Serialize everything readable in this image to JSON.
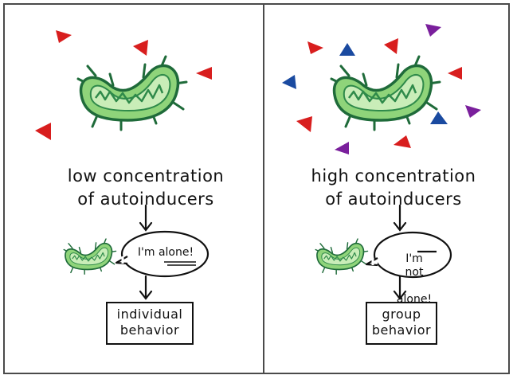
{
  "colors": {
    "red": "#d81e1e",
    "blue": "#1a4aa0",
    "purple": "#7a1f9c",
    "bacteria_fill": "#8fd47a",
    "bacteria_inner": "#c9edb8",
    "bacteria_outline": "#1f6b3a",
    "frame": "#4a4a4a"
  },
  "left": {
    "caption": "low concentration\nof autoinducers",
    "speech": "I'm alone!",
    "box": "individual\nbehavior"
  },
  "right": {
    "caption": "high concentration\nof autoinducers",
    "speech_line1_prefix": "I'm",
    "speech_line1_emph": "not",
    "speech_line2": "alone!",
    "box": "group\nbehavior"
  },
  "icons": [
    "bacterium-icon",
    "autoinducer-triangle-icon",
    "arrow-down-icon",
    "speech-bubble-icon"
  ]
}
